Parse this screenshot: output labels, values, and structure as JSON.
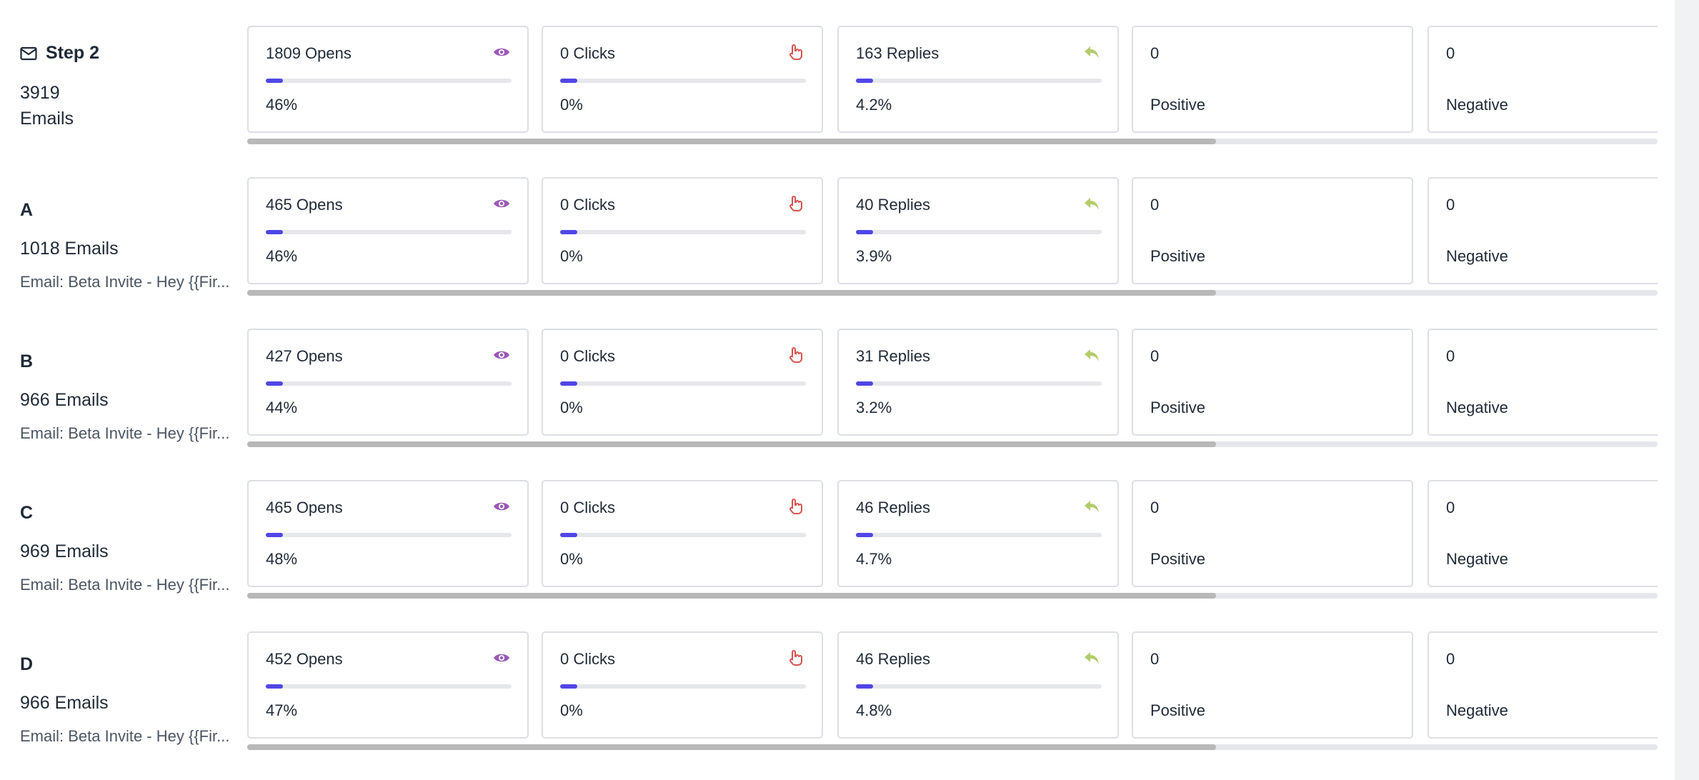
{
  "colors": {
    "accent_fill": "#4f46e5",
    "opens_icon": "#9b59b6",
    "clicks_icon": "#d9534f",
    "replies_icon": "#b5cc6a"
  },
  "icons": {
    "step": "envelope-icon",
    "opens": "eye-icon",
    "clicks": "pointer-hand-icon",
    "replies": "reply-arrow-icon"
  },
  "step": {
    "title": "Step 2",
    "count_number": "3919",
    "count_label": "Emails",
    "opens": "1809 Opens",
    "opens_pct": "46%",
    "opens_fill": 0.07,
    "clicks": "0 Clicks",
    "clicks_pct": "0%",
    "clicks_fill": 0.07,
    "replies": "163 Replies",
    "replies_pct": "4.2%",
    "replies_fill": 0.07,
    "positive_value": "0",
    "positive_label": "Positive",
    "negative_value": "0",
    "negative_label": "Negative"
  },
  "variants": [
    {
      "letter": "A",
      "count": "1018 Emails",
      "subject": "Email: Beta Invite - Hey {{Fir...",
      "opens": "465 Opens",
      "opens_pct": "46%",
      "clicks": "0 Clicks",
      "clicks_pct": "0%",
      "replies": "40 Replies",
      "replies_pct": "3.9%",
      "positive_value": "0",
      "positive_label": "Positive",
      "negative_value": "0",
      "negative_label": "Negative"
    },
    {
      "letter": "B",
      "count": "966 Emails",
      "subject": "Email: Beta Invite - Hey {{Fir...",
      "opens": "427 Opens",
      "opens_pct": "44%",
      "clicks": "0 Clicks",
      "clicks_pct": "0%",
      "replies": "31 Replies",
      "replies_pct": "3.2%",
      "positive_value": "0",
      "positive_label": "Positive",
      "negative_value": "0",
      "negative_label": "Negative"
    },
    {
      "letter": "C",
      "count": "969 Emails",
      "subject": "Email: Beta Invite - Hey {{Fir...",
      "opens": "465 Opens",
      "opens_pct": "48%",
      "clicks": "0 Clicks",
      "clicks_pct": "0%",
      "replies": "46 Replies",
      "replies_pct": "4.7%",
      "positive_value": "0",
      "positive_label": "Positive",
      "negative_value": "0",
      "negative_label": "Negative"
    },
    {
      "letter": "D",
      "count": "966 Emails",
      "subject": "Email: Beta Invite - Hey {{Fir...",
      "opens": "452 Opens",
      "opens_pct": "47%",
      "clicks": "0 Clicks",
      "clicks_pct": "0%",
      "replies": "46 Replies",
      "replies_pct": "4.8%",
      "positive_value": "0",
      "positive_label": "Positive",
      "negative_value": "0",
      "negative_label": "Negative"
    }
  ]
}
